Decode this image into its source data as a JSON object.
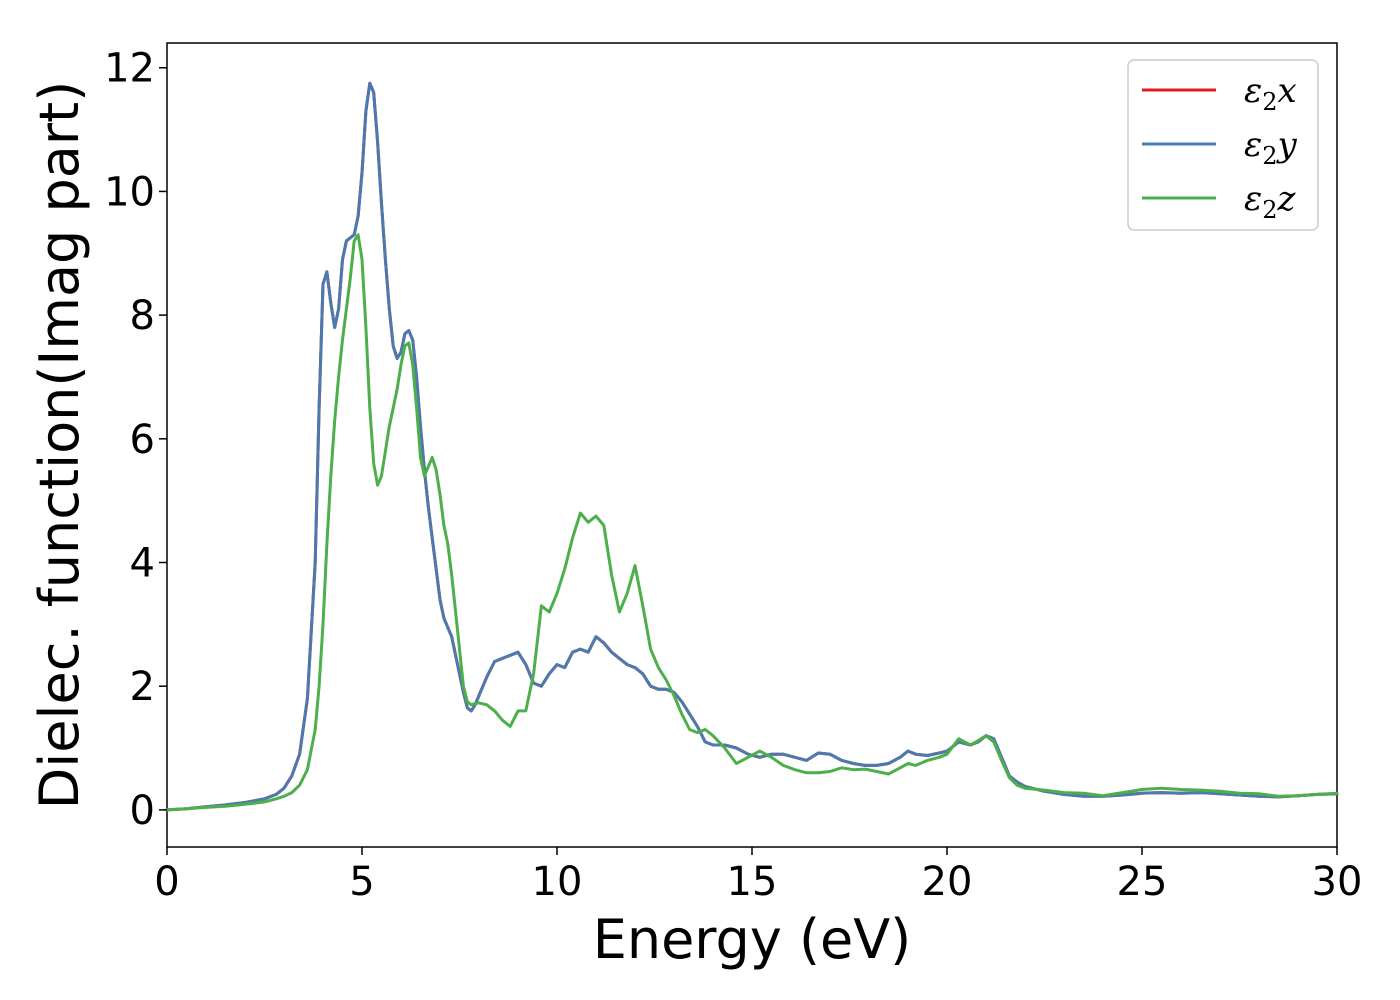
{
  "chart_data": {
    "type": "line",
    "title": "",
    "xlabel": "Energy (eV)",
    "ylabel": "Dielec. function(Imag part)",
    "xlim": [
      0,
      30
    ],
    "ylim": [
      -0.6,
      12.4
    ],
    "xticks": [
      "0",
      "5",
      "10",
      "15",
      "20",
      "25",
      "30"
    ],
    "yticks": [
      "0",
      "2",
      "4",
      "6",
      "8",
      "10",
      "12"
    ],
    "grid": false,
    "legend_position": "top-right",
    "series": [
      {
        "name": "ε2x",
        "legend_base": "ε",
        "legend_sub": "2",
        "legend_tail": "x",
        "color": "#e41a1c",
        "x": [
          0,
          0.5,
          1,
          1.5,
          2,
          2.5,
          2.8,
          3.0,
          3.2,
          3.4,
          3.6,
          3.8,
          3.9,
          4.0,
          4.1,
          4.2,
          4.3,
          4.4,
          4.5,
          4.6,
          4.7,
          4.8,
          4.9,
          5.0,
          5.1,
          5.2,
          5.3,
          5.4,
          5.5,
          5.6,
          5.7,
          5.8,
          5.9,
          6.0,
          6.1,
          6.2,
          6.3,
          6.4,
          6.5,
          6.6,
          6.7,
          6.8,
          6.9,
          7.0,
          7.1,
          7.2,
          7.3,
          7.4,
          7.5,
          7.6,
          7.7,
          7.8,
          7.9,
          8.0,
          8.2,
          8.4,
          8.6,
          8.8,
          9.0,
          9.2,
          9.4,
          9.6,
          9.8,
          10.0,
          10.2,
          10.4,
          10.6,
          10.8,
          11.0,
          11.2,
          11.4,
          11.6,
          11.8,
          12.0,
          12.2,
          12.4,
          12.6,
          12.8,
          13.0,
          13.2,
          13.4,
          13.6,
          13.8,
          14.0,
          14.3,
          14.6,
          14.9,
          15.2,
          15.5,
          15.8,
          16.1,
          16.4,
          16.7,
          17.0,
          17.3,
          17.6,
          17.9,
          18.2,
          18.5,
          18.8,
          19.0,
          19.2,
          19.5,
          19.8,
          20.0,
          20.3,
          20.6,
          20.8,
          21.0,
          21.2,
          21.4,
          21.6,
          21.8,
          22.0,
          22.5,
          23,
          23.5,
          24,
          24.5,
          25,
          25.5,
          26,
          26.5,
          27,
          27.5,
          28,
          28.5,
          29,
          29.5,
          30
        ],
        "y": [
          0.0,
          0.02,
          0.05,
          0.08,
          0.12,
          0.18,
          0.25,
          0.35,
          0.55,
          0.9,
          1.8,
          4.0,
          6.5,
          8.5,
          8.7,
          8.2,
          7.8,
          8.1,
          8.9,
          9.2,
          9.25,
          9.3,
          9.6,
          10.3,
          11.3,
          11.75,
          11.6,
          10.8,
          9.8,
          8.9,
          8.1,
          7.5,
          7.3,
          7.4,
          7.7,
          7.75,
          7.6,
          7.0,
          6.2,
          5.5,
          4.9,
          4.4,
          3.9,
          3.4,
          3.1,
          2.95,
          2.8,
          2.5,
          2.2,
          1.9,
          1.65,
          1.6,
          1.7,
          1.85,
          2.15,
          2.4,
          2.45,
          2.5,
          2.55,
          2.35,
          2.05,
          2.0,
          2.2,
          2.35,
          2.3,
          2.55,
          2.6,
          2.55,
          2.8,
          2.7,
          2.55,
          2.45,
          2.35,
          2.3,
          2.2,
          2.0,
          1.95,
          1.95,
          1.9,
          1.75,
          1.55,
          1.35,
          1.1,
          1.05,
          1.05,
          1.0,
          0.9,
          0.85,
          0.9,
          0.9,
          0.85,
          0.8,
          0.92,
          0.9,
          0.8,
          0.75,
          0.72,
          0.72,
          0.75,
          0.85,
          0.95,
          0.9,
          0.88,
          0.92,
          0.95,
          1.1,
          1.05,
          1.1,
          1.2,
          1.15,
          0.85,
          0.55,
          0.45,
          0.38,
          0.3,
          0.25,
          0.22,
          0.22,
          0.24,
          0.27,
          0.28,
          0.27,
          0.28,
          0.26,
          0.24,
          0.22,
          0.21,
          0.23,
          0.25,
          0.26
        ]
      },
      {
        "name": "ε2y",
        "legend_base": "ε",
        "legend_sub": "2",
        "legend_tail": "y",
        "color": "#4a7ab0",
        "x": [
          0,
          0.5,
          1,
          1.5,
          2,
          2.5,
          2.8,
          3.0,
          3.2,
          3.4,
          3.6,
          3.8,
          3.9,
          4.0,
          4.1,
          4.2,
          4.3,
          4.4,
          4.5,
          4.6,
          4.7,
          4.8,
          4.9,
          5.0,
          5.1,
          5.2,
          5.3,
          5.4,
          5.5,
          5.6,
          5.7,
          5.8,
          5.9,
          6.0,
          6.1,
          6.2,
          6.3,
          6.4,
          6.5,
          6.6,
          6.7,
          6.8,
          6.9,
          7.0,
          7.1,
          7.2,
          7.3,
          7.4,
          7.5,
          7.6,
          7.7,
          7.8,
          7.9,
          8.0,
          8.2,
          8.4,
          8.6,
          8.8,
          9.0,
          9.2,
          9.4,
          9.6,
          9.8,
          10.0,
          10.2,
          10.4,
          10.6,
          10.8,
          11.0,
          11.2,
          11.4,
          11.6,
          11.8,
          12.0,
          12.2,
          12.4,
          12.6,
          12.8,
          13.0,
          13.2,
          13.4,
          13.6,
          13.8,
          14.0,
          14.3,
          14.6,
          14.9,
          15.2,
          15.5,
          15.8,
          16.1,
          16.4,
          16.7,
          17.0,
          17.3,
          17.6,
          17.9,
          18.2,
          18.5,
          18.8,
          19.0,
          19.2,
          19.5,
          19.8,
          20.0,
          20.3,
          20.6,
          20.8,
          21.0,
          21.2,
          21.4,
          21.6,
          21.8,
          22.0,
          22.5,
          23,
          23.5,
          24,
          24.5,
          25,
          25.5,
          26,
          26.5,
          27,
          27.5,
          28,
          28.5,
          29,
          29.5,
          30
        ],
        "y": [
          0.0,
          0.02,
          0.05,
          0.08,
          0.12,
          0.18,
          0.25,
          0.35,
          0.55,
          0.9,
          1.8,
          4.0,
          6.5,
          8.5,
          8.7,
          8.2,
          7.8,
          8.1,
          8.9,
          9.2,
          9.25,
          9.3,
          9.6,
          10.3,
          11.3,
          11.75,
          11.6,
          10.8,
          9.8,
          8.9,
          8.1,
          7.5,
          7.3,
          7.4,
          7.7,
          7.75,
          7.6,
          7.0,
          6.2,
          5.5,
          4.9,
          4.4,
          3.9,
          3.4,
          3.1,
          2.95,
          2.8,
          2.5,
          2.2,
          1.9,
          1.65,
          1.6,
          1.7,
          1.85,
          2.15,
          2.4,
          2.45,
          2.5,
          2.55,
          2.35,
          2.05,
          2.0,
          2.2,
          2.35,
          2.3,
          2.55,
          2.6,
          2.55,
          2.8,
          2.7,
          2.55,
          2.45,
          2.35,
          2.3,
          2.2,
          2.0,
          1.95,
          1.95,
          1.9,
          1.75,
          1.55,
          1.35,
          1.1,
          1.05,
          1.05,
          1.0,
          0.9,
          0.85,
          0.9,
          0.9,
          0.85,
          0.8,
          0.92,
          0.9,
          0.8,
          0.75,
          0.72,
          0.72,
          0.75,
          0.85,
          0.95,
          0.9,
          0.88,
          0.92,
          0.95,
          1.1,
          1.05,
          1.1,
          1.2,
          1.15,
          0.85,
          0.55,
          0.45,
          0.38,
          0.3,
          0.25,
          0.22,
          0.22,
          0.24,
          0.27,
          0.28,
          0.27,
          0.28,
          0.26,
          0.24,
          0.22,
          0.21,
          0.23,
          0.25,
          0.26
        ]
      },
      {
        "name": "ε2z",
        "legend_base": "ε",
        "legend_sub": "2",
        "legend_tail": "z",
        "color": "#4daf4a",
        "x": [
          0,
          0.5,
          1,
          1.5,
          2,
          2.5,
          2.8,
          3.0,
          3.2,
          3.4,
          3.6,
          3.8,
          3.9,
          4.0,
          4.1,
          4.2,
          4.3,
          4.4,
          4.5,
          4.6,
          4.7,
          4.8,
          4.9,
          5.0,
          5.1,
          5.2,
          5.3,
          5.4,
          5.5,
          5.6,
          5.7,
          5.8,
          5.9,
          6.0,
          6.1,
          6.2,
          6.3,
          6.4,
          6.5,
          6.6,
          6.7,
          6.8,
          6.9,
          7.0,
          7.1,
          7.2,
          7.3,
          7.4,
          7.5,
          7.6,
          7.7,
          7.8,
          7.9,
          8.0,
          8.2,
          8.4,
          8.6,
          8.8,
          9.0,
          9.2,
          9.4,
          9.6,
          9.8,
          10.0,
          10.2,
          10.4,
          10.6,
          10.8,
          11.0,
          11.2,
          11.4,
          11.6,
          11.8,
          12.0,
          12.2,
          12.4,
          12.6,
          12.8,
          13.0,
          13.2,
          13.4,
          13.6,
          13.8,
          14.0,
          14.3,
          14.6,
          14.9,
          15.2,
          15.5,
          15.8,
          16.1,
          16.4,
          16.7,
          17.0,
          17.3,
          17.6,
          17.9,
          18.2,
          18.5,
          18.8,
          19.0,
          19.2,
          19.5,
          19.8,
          20.0,
          20.3,
          20.6,
          20.8,
          21.0,
          21.2,
          21.4,
          21.6,
          21.8,
          22.0,
          22.5,
          23,
          23.5,
          24,
          24.5,
          25,
          25.5,
          26,
          26.5,
          27,
          27.5,
          28,
          28.5,
          29,
          29.5,
          30
        ],
        "y": [
          0.0,
          0.02,
          0.04,
          0.06,
          0.09,
          0.13,
          0.18,
          0.22,
          0.28,
          0.4,
          0.65,
          1.3,
          2.0,
          3.0,
          4.3,
          5.4,
          6.3,
          7.0,
          7.6,
          8.1,
          8.6,
          9.2,
          9.3,
          8.9,
          7.8,
          6.5,
          5.6,
          5.25,
          5.4,
          5.8,
          6.2,
          6.5,
          6.8,
          7.2,
          7.5,
          7.55,
          7.2,
          6.5,
          5.7,
          5.4,
          5.55,
          5.7,
          5.5,
          5.1,
          4.6,
          4.3,
          3.8,
          3.2,
          2.6,
          2.0,
          1.75,
          1.7,
          1.72,
          1.73,
          1.7,
          1.6,
          1.45,
          1.35,
          1.6,
          1.6,
          2.2,
          3.3,
          3.2,
          3.5,
          3.9,
          4.4,
          4.8,
          4.65,
          4.75,
          4.6,
          3.8,
          3.2,
          3.5,
          3.95,
          3.3,
          2.6,
          2.3,
          2.1,
          1.85,
          1.55,
          1.3,
          1.25,
          1.3,
          1.2,
          1.0,
          0.75,
          0.85,
          0.95,
          0.85,
          0.72,
          0.65,
          0.6,
          0.6,
          0.62,
          0.68,
          0.65,
          0.66,
          0.62,
          0.58,
          0.68,
          0.75,
          0.72,
          0.8,
          0.85,
          0.9,
          1.15,
          1.05,
          1.12,
          1.2,
          1.1,
          0.8,
          0.52,
          0.4,
          0.35,
          0.32,
          0.28,
          0.27,
          0.23,
          0.28,
          0.33,
          0.35,
          0.33,
          0.32,
          0.3,
          0.27,
          0.26,
          0.22,
          0.23,
          0.25,
          0.27
        ]
      }
    ]
  }
}
